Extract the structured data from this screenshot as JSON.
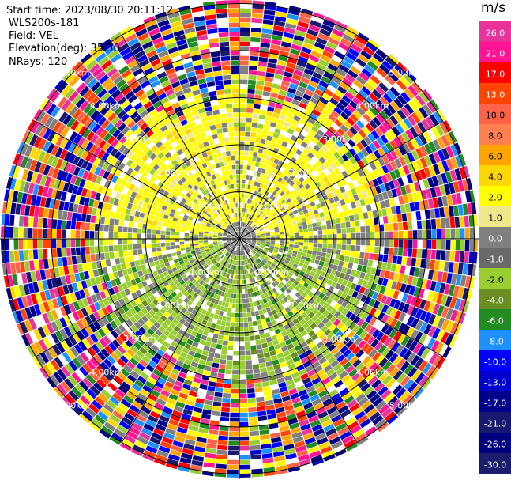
{
  "info": {
    "start_time": "Start time: 2023/08/30 20:11:12",
    "instrument": "WLS200s-181",
    "field": "Field: VEL",
    "elevation": "Elevation(deg): 35.30",
    "nrays": "NRays: 120"
  },
  "chart_data": {
    "type": "heatmap",
    "projection": "polar",
    "field": "VEL",
    "units": "m/s",
    "nrays": 120,
    "elevation_deg": 35.3,
    "range_rings_km": [
      1.0,
      2.0,
      3.0,
      4.0,
      5.0
    ],
    "ring_labels": [
      "1.00km",
      "2.00km",
      "3.00km",
      "4.00km",
      "5.00km"
    ],
    "colorbar": {
      "title": "m/s",
      "ticks": [
        "26.0",
        "21.0",
        "17.0",
        "13.0",
        "10.0",
        "8.0",
        "6.0",
        "4.0",
        "2.0",
        "1.0",
        "0.0",
        "-1.0",
        "-2.0",
        "-4.0",
        "-6.0",
        "-8.0",
        "-10.0",
        "-13.0",
        "-17.0",
        "-21.0",
        "-26.0",
        "-30.0"
      ],
      "colors": [
        "#e8349a",
        "#ff1493",
        "#ff0000",
        "#ff4500",
        "#ff6347",
        "#ff7f50",
        "#ffa500",
        "#ffd700",
        "#ffff00",
        "#f0e68c",
        "#808080",
        "#696969",
        "#9acd32",
        "#6b8e23",
        "#228b22",
        "#1e90ff",
        "#0000ff",
        "#0000cd",
        "#00008b",
        "#191970",
        "#000080",
        "#1c1c6e"
      ]
    },
    "noise_threshold_km": 3.2
  }
}
